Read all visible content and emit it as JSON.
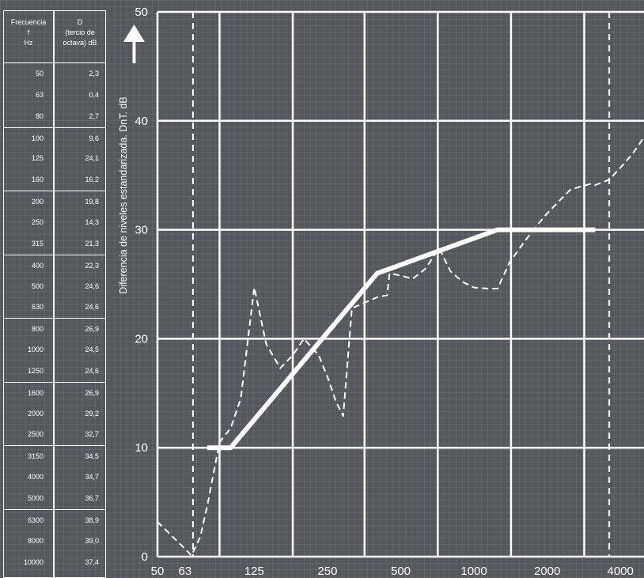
{
  "table": {
    "header_freq": [
      "Frecuencia",
      "f",
      "Hz"
    ],
    "header_d": [
      "D",
      "(tercio de",
      "octava) dB"
    ],
    "rows": [
      {
        "f": "50",
        "d": "2,3"
      },
      {
        "f": "63",
        "d": "0,4"
      },
      {
        "f": "80",
        "d": "2,7"
      },
      {
        "f": "100",
        "d": "9,6"
      },
      {
        "f": "125",
        "d": "24,1"
      },
      {
        "f": "160",
        "d": "16,2"
      },
      {
        "f": "200",
        "d": "19,8"
      },
      {
        "f": "250",
        "d": "14,3"
      },
      {
        "f": "315",
        "d": "21,3"
      },
      {
        "f": "400",
        "d": "22,3"
      },
      {
        "f": "500",
        "d": "24,6"
      },
      {
        "f": "630",
        "d": "24,6"
      },
      {
        "f": "800",
        "d": "26,9"
      },
      {
        "f": "1000",
        "d": "24,5"
      },
      {
        "f": "1250",
        "d": "24,6"
      },
      {
        "f": "1600",
        "d": "26,9"
      },
      {
        "f": "2000",
        "d": "29,2"
      },
      {
        "f": "2500",
        "d": "32,7"
      },
      {
        "f": "3150",
        "d": "34,5"
      },
      {
        "f": "4000",
        "d": "34,7"
      },
      {
        "f": "5000",
        "d": "36,7"
      },
      {
        "f": "6300",
        "d": "38,9"
      },
      {
        "f": "8000",
        "d": "39,0"
      },
      {
        "f": "10000",
        "d": "37,4"
      }
    ]
  },
  "chart_data": {
    "type": "line",
    "ylabel": "Diferencia de niveles estandarizada. DnT. dB",
    "ylim": [
      0,
      50
    ],
    "xscale": "log",
    "xlim": [
      50,
      5000
    ],
    "y_ticks": [
      0,
      10,
      20,
      30,
      40,
      50
    ],
    "x_tick_labels": [
      "50",
      "63",
      "125",
      "250",
      "500",
      "1000",
      "2000",
      "4000"
    ],
    "x_ticks": [
      50,
      63,
      125,
      250,
      500,
      1000,
      2000,
      4000
    ],
    "grid": true,
    "series": [
      {
        "style": "solid-thick",
        "x": [
          80,
          100,
          400,
          1250,
          3150
        ],
        "y": [
          10,
          10,
          26,
          30,
          30
        ]
      },
      {
        "style": "dashed",
        "x": [
          50,
          63,
          69,
          75,
          80,
          90,
          100,
          110,
          125,
          140,
          160,
          180,
          200,
          230,
          250,
          270,
          290,
          315,
          400,
          440,
          450,
          500,
          560,
          630,
          720,
          800,
          900,
          1000,
          1150,
          1250,
          1400,
          1600,
          1800,
          2000,
          2300,
          2500,
          3000,
          3150,
          3600,
          4000,
          4500,
          5000
        ],
        "y": [
          3.2,
          1.0,
          0.1,
          1.8,
          4.6,
          10.5,
          11.8,
          14.5,
          24.7,
          19.5,
          17.3,
          18.5,
          20.0,
          18.5,
          16.5,
          14.3,
          12.9,
          22.8,
          23.8,
          24.0,
          26.0,
          25.8,
          25.5,
          26.4,
          28.3,
          26.2,
          25.2,
          24.7,
          24.6,
          24.6,
          27.0,
          28.8,
          30.3,
          31.5,
          32.9,
          33.7,
          34.2,
          34.1,
          34.6,
          35.7,
          37.0,
          38.5
        ]
      }
    ],
    "reference_lines": [
      {
        "style": "dashed",
        "x": 70
      },
      {
        "style": "dashed",
        "x": 3600
      }
    ]
  }
}
